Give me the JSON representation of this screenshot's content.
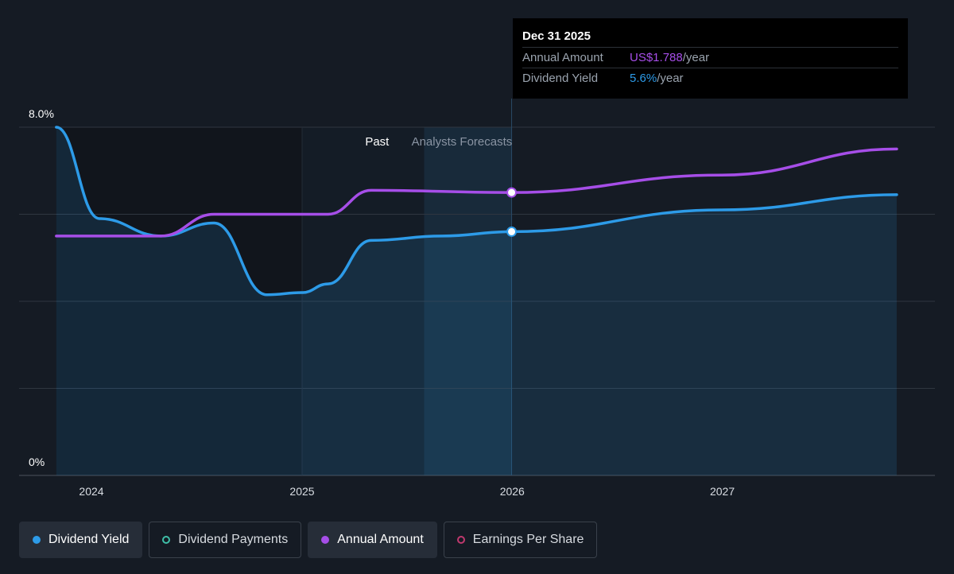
{
  "chart_data": {
    "type": "line",
    "x_ticks": [
      "2024",
      "2025",
      "2026",
      "2027"
    ],
    "y_ticks": [
      "8.0%",
      "0%"
    ],
    "ylim": [
      0,
      8.0
    ],
    "regions": {
      "past_label": "Past",
      "forecast_label": "Analysts Forecasts"
    },
    "series": [
      {
        "name": "Dividend Yield",
        "color": "#2d9be8",
        "unit": "%",
        "points": [
          [
            "2023-11-01",
            8.0
          ],
          [
            "2024-01-15",
            5.9
          ],
          [
            "2024-05-01",
            5.5
          ],
          [
            "2024-08-01",
            5.8
          ],
          [
            "2024-11-01",
            4.15
          ],
          [
            "2025-01-01",
            4.2
          ],
          [
            "2025-02-15",
            4.4
          ],
          [
            "2025-05-01",
            5.4
          ],
          [
            "2025-09-01",
            5.5
          ],
          [
            "2025-12-31",
            5.6
          ],
          [
            "2026-12-31",
            6.1
          ],
          [
            "2027-10-31",
            6.45
          ]
        ]
      },
      {
        "name": "Annual Amount",
        "color": "#a64ee8",
        "unit": "US$",
        "points": [
          [
            "2023-11-01",
            5.5
          ],
          [
            "2024-05-01",
            5.5
          ],
          [
            "2024-08-01",
            6.0
          ],
          [
            "2025-02-15",
            6.0
          ],
          [
            "2025-05-01",
            6.55
          ],
          [
            "2025-12-31",
            6.5
          ],
          [
            "2026-12-31",
            6.9
          ],
          [
            "2027-10-31",
            7.5
          ]
        ]
      }
    ],
    "highlight": {
      "date": "2025-12-31"
    },
    "tooltip": {
      "date": "Dec 31 2025",
      "rows": [
        {
          "label": "Annual Amount",
          "value": "US$1.788",
          "unit": "/year",
          "color": "#a64ee8"
        },
        {
          "label": "Dividend Yield",
          "value": "5.6%",
          "unit": "/year",
          "color": "#2d9be8"
        }
      ]
    }
  },
  "legend": [
    {
      "label": "Dividend Yield",
      "color": "#2d9be8",
      "active": true,
      "style": "filled"
    },
    {
      "label": "Dividend Payments",
      "color": "#3fbfa8",
      "active": false,
      "style": "hollow"
    },
    {
      "label": "Annual Amount",
      "color": "#a64ee8",
      "active": true,
      "style": "filled"
    },
    {
      "label": "Earnings Per Share",
      "color": "#c0396e",
      "active": false,
      "style": "hollow"
    }
  ]
}
